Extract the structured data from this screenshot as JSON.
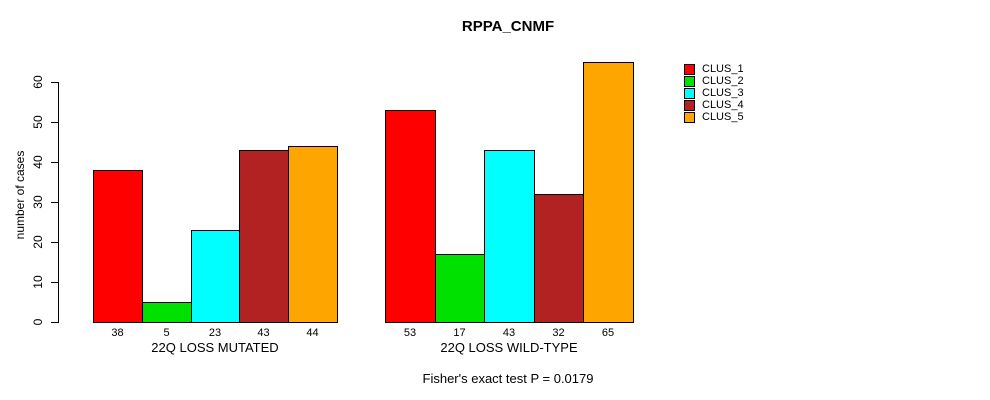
{
  "title": "RPPA_CNMF",
  "annotation": "Fisher's exact test P = 0.0179",
  "y_axis": {
    "label": "number of cases",
    "ticks": [
      0,
      10,
      20,
      30,
      40,
      50,
      60
    ]
  },
  "chart_data": {
    "type": "bar",
    "title": "RPPA_CNMF",
    "xlabel": "",
    "ylabel": "number of cases",
    "ylim": [
      0,
      65
    ],
    "yticks": [
      0,
      10,
      20,
      30,
      40,
      50,
      60
    ],
    "grid": false,
    "legend_position": "right",
    "bar_value_labels": true,
    "categories": [
      "22Q LOSS MUTATED",
      "22Q LOSS WILD-TYPE"
    ],
    "series": [
      {
        "name": "CLUS_1",
        "color": "#FF0000",
        "values": [
          38,
          53
        ]
      },
      {
        "name": "CLUS_2",
        "color": "#00E100",
        "values": [
          5,
          17
        ]
      },
      {
        "name": "CLUS_3",
        "color": "#00FFFF",
        "values": [
          23,
          43
        ]
      },
      {
        "name": "CLUS_4",
        "color": "#B22222",
        "values": [
          43,
          32
        ]
      },
      {
        "name": "CLUS_5",
        "color": "#FFA500",
        "values": [
          44,
          65
        ]
      }
    ],
    "annotation": "Fisher's exact test P = 0.0179"
  }
}
